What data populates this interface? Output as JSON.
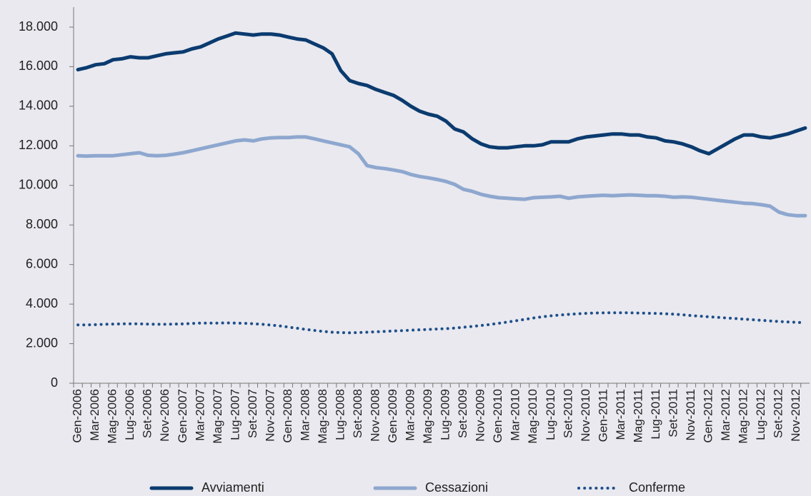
{
  "chart_data": {
    "type": "line",
    "categories": [
      "Gen-2006",
      null,
      "Mar-2006",
      null,
      "Mag-2006",
      null,
      "Lug-2006",
      null,
      "Set-2006",
      null,
      "Nov-2006",
      null,
      "Gen-2007",
      null,
      "Mar-2007",
      null,
      "Mag-2007",
      null,
      "Lug-2007",
      null,
      "Set-2007",
      null,
      "Nov-2007",
      null,
      "Gen-2008",
      null,
      "Mar-2008",
      null,
      "Mag-2008",
      null,
      "Lug-2008",
      null,
      "Set-2008",
      null,
      "Nov-2008",
      null,
      "Gen-2009",
      null,
      "Mar-2009",
      null,
      "Mag-2009",
      null,
      "Lug-2009",
      null,
      "Set-2009",
      null,
      "Nov-2009",
      null,
      "Gen-2010",
      null,
      "Mar-2010",
      null,
      "Mag-2010",
      null,
      "Lug-2010",
      null,
      "Set-2010",
      null,
      "Nov-2010",
      null,
      "Gen-2011",
      null,
      "Mar-2011",
      null,
      "Mag-2011",
      null,
      "Lug-2011",
      null,
      "Set-2011",
      null,
      "Nov-2011",
      null,
      "Gen-2012",
      null,
      "Mar-2012",
      null,
      "Mag-2012",
      null,
      "Lug-2012",
      null,
      "Set-2012",
      null,
      "Nov-2012",
      null
    ],
    "series": [
      {
        "name": "Avviamenti",
        "color": "#0b3b6f",
        "style": "solid",
        "values": [
          15850,
          15950,
          16100,
          16150,
          16350,
          16400,
          16500,
          16450,
          16450,
          16550,
          16650,
          16700,
          16750,
          16900,
          17000,
          17200,
          17400,
          17550,
          17700,
          17650,
          17600,
          17650,
          17650,
          17600,
          17500,
          17400,
          17350,
          17150,
          16950,
          16650,
          15800,
          15300,
          15150,
          15050,
          14850,
          14700,
          14550,
          14300,
          14000,
          13750,
          13600,
          13500,
          13250,
          12850,
          12700,
          12350,
          12100,
          11950,
          11900,
          11900,
          11950,
          12000,
          12000,
          12050,
          12200,
          12200,
          12200,
          12350,
          12450,
          12500,
          12550,
          12600,
          12600,
          12550,
          12550,
          12450,
          12400,
          12250,
          12200,
          12100,
          11950,
          11750,
          11600,
          11850,
          12100,
          12350,
          12550,
          12550,
          12450,
          12400,
          12500,
          12600,
          12750,
          12900
        ]
      },
      {
        "name": "Cessazioni",
        "color": "#8ea7cf",
        "style": "solid",
        "values": [
          11500,
          11480,
          11500,
          11500,
          11500,
          11550,
          11600,
          11650,
          11520,
          11500,
          11520,
          11580,
          11650,
          11750,
          11850,
          11950,
          12050,
          12150,
          12250,
          12300,
          12250,
          12350,
          12400,
          12420,
          12420,
          12450,
          12450,
          12350,
          12250,
          12150,
          12050,
          11950,
          11600,
          11000,
          10900,
          10850,
          10780,
          10700,
          10550,
          10450,
          10380,
          10300,
          10200,
          10050,
          9800,
          9700,
          9550,
          9450,
          9380,
          9350,
          9320,
          9300,
          9380,
          9400,
          9420,
          9450,
          9350,
          9420,
          9450,
          9480,
          9500,
          9480,
          9500,
          9520,
          9500,
          9480,
          9480,
          9450,
          9400,
          9420,
          9400,
          9350,
          9300,
          9250,
          9200,
          9150,
          9100,
          9080,
          9020,
          8950,
          8650,
          8520,
          8470,
          8470
        ]
      },
      {
        "name": "Conferme",
        "color": "#1f4f8a",
        "style": "dotted",
        "values": [
          2950,
          2950,
          2960,
          2980,
          2990,
          3000,
          3000,
          3000,
          2990,
          2980,
          2980,
          2990,
          3000,
          3020,
          3040,
          3040,
          3040,
          3050,
          3040,
          3030,
          3010,
          2980,
          2940,
          2900,
          2840,
          2780,
          2720,
          2670,
          2620,
          2580,
          2560,
          2550,
          2560,
          2580,
          2600,
          2620,
          2640,
          2660,
          2680,
          2700,
          2720,
          2740,
          2760,
          2790,
          2830,
          2870,
          2920,
          2970,
          3030,
          3090,
          3160,
          3230,
          3300,
          3360,
          3410,
          3450,
          3480,
          3510,
          3530,
          3550,
          3560,
          3560,
          3560,
          3560,
          3550,
          3540,
          3530,
          3510,
          3490,
          3460,
          3420,
          3390,
          3360,
          3330,
          3300,
          3270,
          3240,
          3210,
          3180,
          3150,
          3120,
          3100,
          3080,
          3050
        ]
      }
    ],
    "ylim": [
      0,
      18000
    ],
    "yticks": [
      0,
      {
        "value": 2000,
        "label": "2.000"
      },
      {
        "value": 4000,
        "label": "4.000"
      },
      {
        "value": 6000,
        "label": "6.000"
      },
      {
        "value": 8000,
        "label": "8.000"
      },
      {
        "value": 10000,
        "label": "10.000"
      },
      {
        "value": 12000,
        "label": "12.000"
      },
      {
        "value": 14000,
        "label": "14.000"
      },
      {
        "value": 16000,
        "label": "16.000"
      },
      {
        "value": 18000,
        "label": "18.000"
      }
    ],
    "legend": "bottom",
    "grid": false
  }
}
